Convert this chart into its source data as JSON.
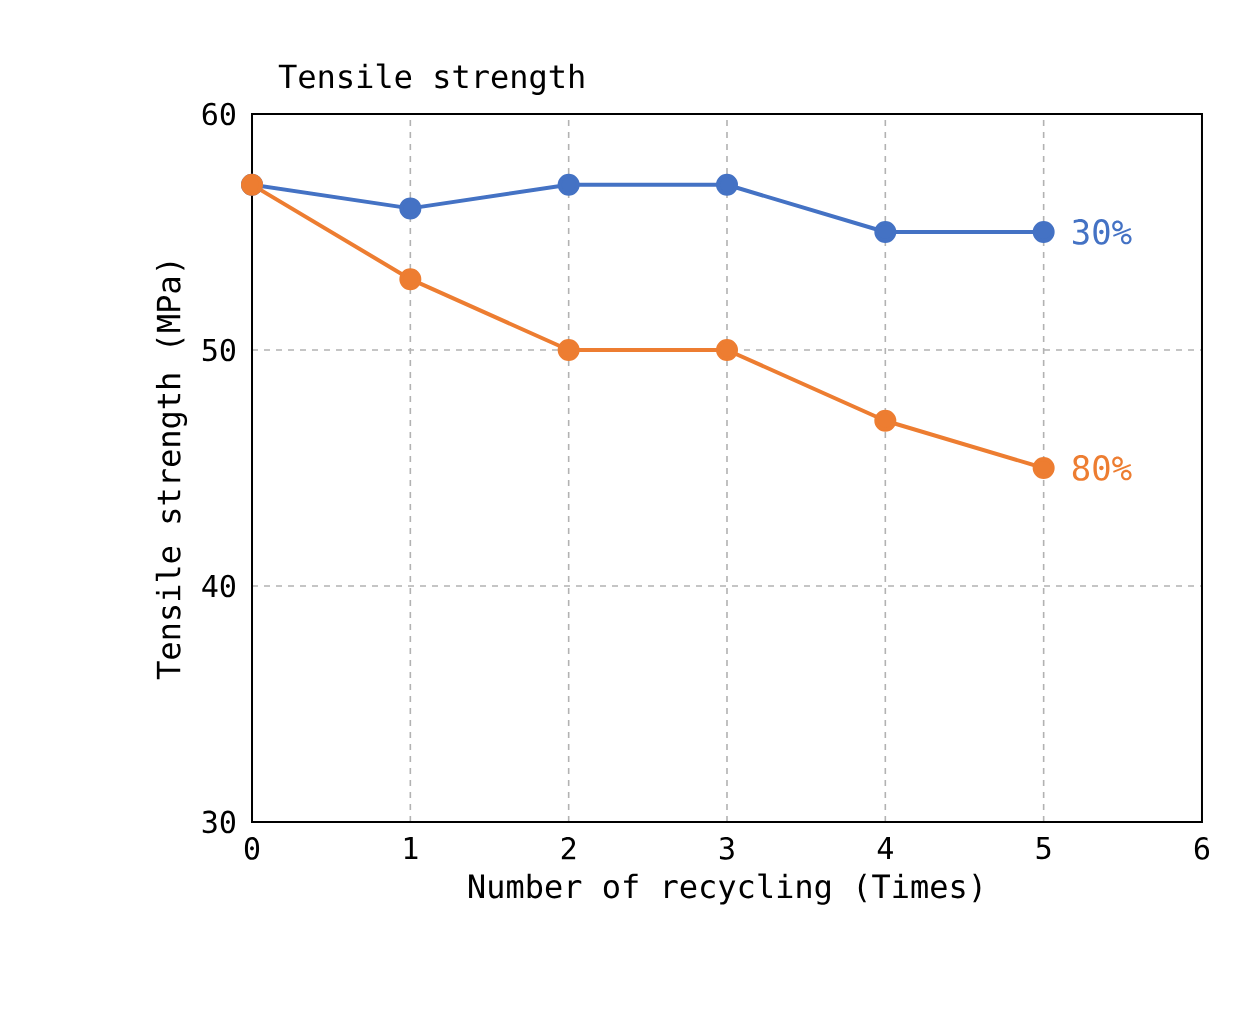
{
  "chart_data": {
    "type": "line",
    "title": "Tensile strength",
    "xlabel": "Number of recycling (Times)",
    "ylabel": "Tensile strength (MPa)",
    "x": [
      0,
      1,
      2,
      3,
      4,
      5
    ],
    "series": [
      {
        "name": "30%",
        "color": "#4472c4",
        "values": [
          57,
          56,
          57,
          57,
          55,
          55
        ]
      },
      {
        "name": "80%",
        "color": "#ed7d31",
        "values": [
          57,
          53,
          50,
          50,
          47,
          45
        ]
      }
    ],
    "xlim": [
      0,
      6
    ],
    "xticks": [
      0,
      1,
      2,
      3,
      4,
      5,
      6
    ],
    "ylim": [
      30,
      60
    ],
    "yticks": [
      30,
      40,
      50,
      60
    ],
    "grid": true,
    "marker": "circle",
    "line_style": "solid"
  }
}
